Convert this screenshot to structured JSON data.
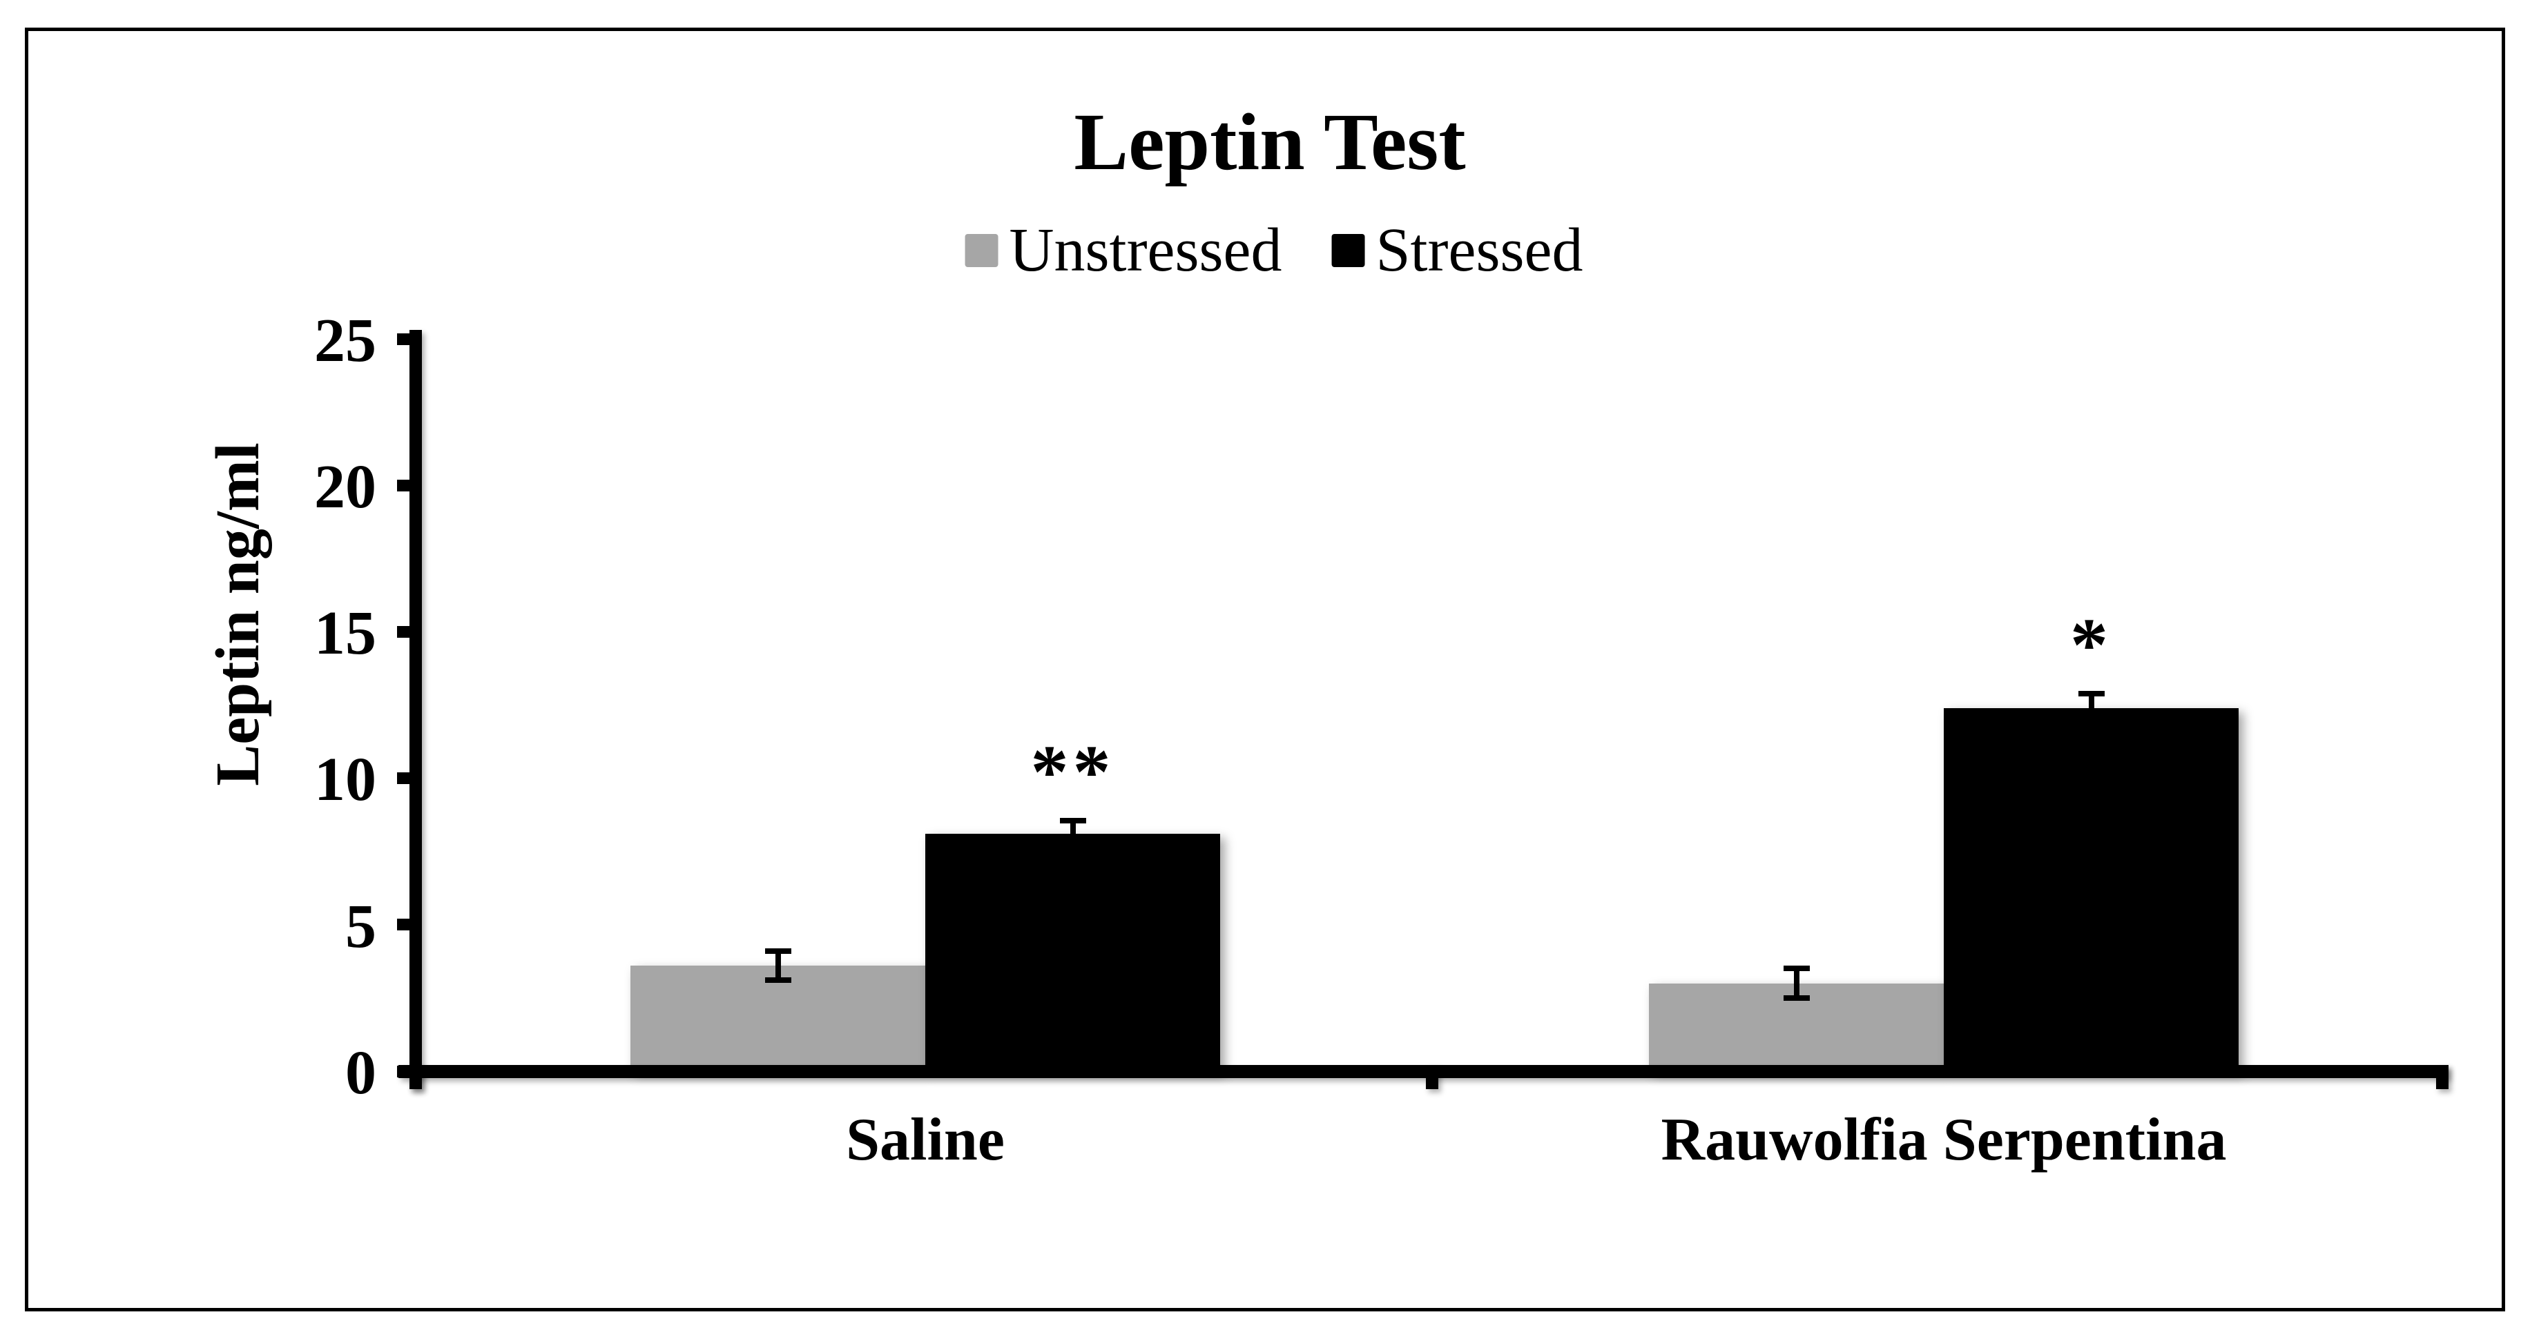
{
  "chart_data": {
    "type": "bar",
    "title": "Leptin Test",
    "ylabel": "Leptin ng/ml",
    "xlabel": "",
    "ylim": [
      0,
      25
    ],
    "yticks": [
      0,
      5,
      10,
      15,
      20,
      25
    ],
    "categories": [
      "Saline",
      "Rauwolfia Serpentina"
    ],
    "series": [
      {
        "name": "Unstressed",
        "color": "#a6a6a6",
        "values": [
          3.6,
          3.0
        ],
        "errors": [
          0.5,
          0.5
        ],
        "annotations": [
          "",
          ""
        ]
      },
      {
        "name": "Stressed",
        "color": "#000000",
        "values": [
          8.1,
          12.4
        ],
        "errors": [
          0.45,
          0.5
        ],
        "annotations": [
          "**",
          "*"
        ]
      }
    ],
    "legend_position": "top-center",
    "grid": false,
    "error_bars": "plus-minus",
    "background": "#ffffff",
    "frame_color": "#000000"
  }
}
